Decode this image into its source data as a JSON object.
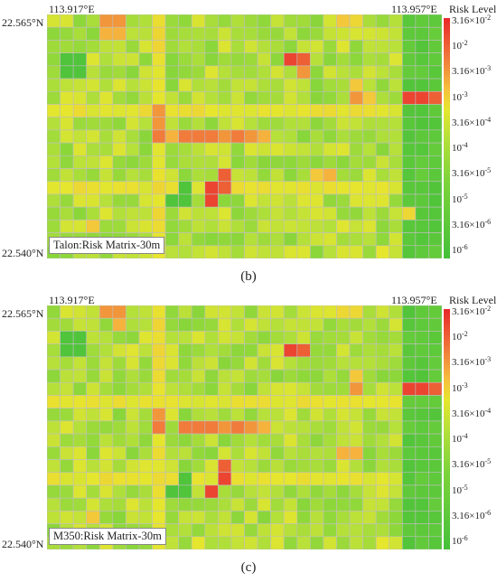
{
  "chart_data": [
    {
      "type": "heatmap",
      "panel": "(b)",
      "inset_label": "Talon:Risk Matrix-30m",
      "x_left_label": "113.917°E",
      "x_right_label": "113.957°E",
      "y_top_label": "22.565°N",
      "y_bottom_label": "22.540°N",
      "legend_title": "Risk Level",
      "colorbar_ticks": [
        "3.16×10^-2",
        "10^-2",
        "3.16×10^-3",
        "10^-3",
        "3.16×10^-4",
        "10^-4",
        "3.16×10^-5",
        "10^-5",
        "3.16×10^-6",
        "10^-6"
      ],
      "grid_rows": 19,
      "grid_cols": 30,
      "hotspots": [
        {
          "row": 0,
          "col": 4,
          "level": 0.8
        },
        {
          "row": 0,
          "col": 5,
          "level": 0.8
        },
        {
          "row": 0,
          "col": 22,
          "level": 0.7
        },
        {
          "row": 0,
          "col": 23,
          "level": 0.65
        },
        {
          "row": 1,
          "col": 4,
          "level": 0.75
        },
        {
          "row": 1,
          "col": 5,
          "level": 0.75
        },
        {
          "row": 3,
          "col": 18,
          "level": 0.95
        },
        {
          "row": 3,
          "col": 19,
          "level": 0.9
        },
        {
          "row": 4,
          "col": 19,
          "level": 0.8
        },
        {
          "row": 5,
          "col": 23,
          "level": 0.7
        },
        {
          "row": 6,
          "col": 23,
          "level": 0.8
        },
        {
          "row": 6,
          "col": 24,
          "level": 0.7
        },
        {
          "row": 6,
          "col": 27,
          "level": 0.95
        },
        {
          "row": 6,
          "col": 28,
          "level": 0.95
        },
        {
          "row": 6,
          "col": 29,
          "level": 0.9
        },
        {
          "row": 7,
          "col": 8,
          "level": 0.8
        },
        {
          "row": 8,
          "col": 8,
          "level": 0.8
        },
        {
          "row": 9,
          "col": 8,
          "level": 0.85
        },
        {
          "row": 9,
          "col": 9,
          "level": 0.75
        },
        {
          "row": 9,
          "col": 10,
          "level": 0.85
        },
        {
          "row": 9,
          "col": 11,
          "level": 0.85
        },
        {
          "row": 9,
          "col": 12,
          "level": 0.85
        },
        {
          "row": 9,
          "col": 13,
          "level": 0.8
        },
        {
          "row": 9,
          "col": 14,
          "level": 0.85
        },
        {
          "row": 9,
          "col": 15,
          "level": 0.8
        },
        {
          "row": 9,
          "col": 16,
          "level": 0.75
        },
        {
          "row": 12,
          "col": 13,
          "level": 0.9
        },
        {
          "row": 12,
          "col": 20,
          "level": 0.7
        },
        {
          "row": 12,
          "col": 21,
          "level": 0.75
        },
        {
          "row": 13,
          "col": 12,
          "level": 0.95
        },
        {
          "row": 13,
          "col": 13,
          "level": 0.9
        },
        {
          "row": 14,
          "col": 12,
          "level": 0.95
        },
        {
          "row": 15,
          "col": 27,
          "level": 0.65
        },
        {
          "row": 16,
          "col": 3,
          "level": 0.7
        },
        {
          "row": 18,
          "col": 25,
          "level": 0.6
        }
      ],
      "low_zones": [
        {
          "row": 3,
          "col": 1
        },
        {
          "row": 3,
          "col": 2
        },
        {
          "row": 4,
          "col": 1
        },
        {
          "row": 4,
          "col": 2
        },
        {
          "row": 13,
          "col": 10
        },
        {
          "row": 14,
          "col": 9
        },
        {
          "row": 14,
          "col": 10
        }
      ]
    },
    {
      "type": "heatmap",
      "panel": "(c)",
      "inset_label": "M350:Risk Matrix-30m",
      "x_left_label": "113.917°E",
      "x_right_label": "113.957°E",
      "y_top_label": "22.565°N",
      "y_bottom_label": "22.540°N",
      "legend_title": "Risk Level",
      "colorbar_ticks": [
        "3.16×10^-2",
        "10^-2",
        "3.16×10^-3",
        "10^-3",
        "3.16×10^-4",
        "10^-4",
        "3.16×10^-5",
        "10^-5",
        "3.16×10^-6",
        "10^-6"
      ],
      "grid_rows": 19,
      "grid_cols": 30,
      "hotspots": [
        {
          "row": 0,
          "col": 4,
          "level": 0.8
        },
        {
          "row": 0,
          "col": 5,
          "level": 0.8
        },
        {
          "row": 0,
          "col": 22,
          "level": 0.65
        },
        {
          "row": 0,
          "col": 23,
          "level": 0.65
        },
        {
          "row": 1,
          "col": 5,
          "level": 0.75
        },
        {
          "row": 3,
          "col": 18,
          "level": 0.95
        },
        {
          "row": 3,
          "col": 19,
          "level": 0.9
        },
        {
          "row": 5,
          "col": 23,
          "level": 0.7
        },
        {
          "row": 6,
          "col": 23,
          "level": 0.8
        },
        {
          "row": 6,
          "col": 27,
          "level": 0.95
        },
        {
          "row": 6,
          "col": 28,
          "level": 0.95
        },
        {
          "row": 6,
          "col": 29,
          "level": 0.9
        },
        {
          "row": 8,
          "col": 8,
          "level": 0.8
        },
        {
          "row": 9,
          "col": 8,
          "level": 0.85
        },
        {
          "row": 9,
          "col": 10,
          "level": 0.85
        },
        {
          "row": 9,
          "col": 11,
          "level": 0.85
        },
        {
          "row": 9,
          "col": 12,
          "level": 0.85
        },
        {
          "row": 9,
          "col": 13,
          "level": 0.8
        },
        {
          "row": 9,
          "col": 14,
          "level": 0.85
        },
        {
          "row": 9,
          "col": 15,
          "level": 0.8
        },
        {
          "row": 9,
          "col": 16,
          "level": 0.75
        },
        {
          "row": 11,
          "col": 22,
          "level": 0.75
        },
        {
          "row": 11,
          "col": 23,
          "level": 0.75
        },
        {
          "row": 12,
          "col": 13,
          "level": 0.9
        },
        {
          "row": 13,
          "col": 13,
          "level": 0.95
        },
        {
          "row": 14,
          "col": 12,
          "level": 0.95
        },
        {
          "row": 16,
          "col": 3,
          "level": 0.7
        },
        {
          "row": 18,
          "col": 11,
          "level": 0.6
        },
        {
          "row": 18,
          "col": 25,
          "level": 0.6
        }
      ],
      "low_zones": [
        {
          "row": 2,
          "col": 1
        },
        {
          "row": 2,
          "col": 2
        },
        {
          "row": 3,
          "col": 1
        },
        {
          "row": 3,
          "col": 2
        },
        {
          "row": 13,
          "col": 10
        },
        {
          "row": 14,
          "col": 9
        },
        {
          "row": 14,
          "col": 10
        }
      ]
    }
  ],
  "colors": {
    "high": "#e8282a",
    "medium_high": "#f07b3b",
    "medium": "#e6e62e",
    "low": "#9ad83a",
    "very_low": "#44c03a",
    "grid_line": "#bfbfbf"
  }
}
